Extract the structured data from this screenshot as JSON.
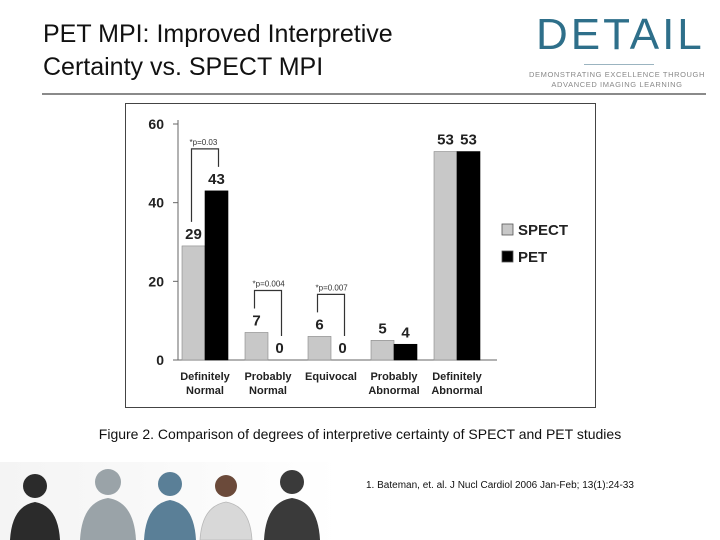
{
  "slide": {
    "title_line1": "PET MPI: Improved Interpretive",
    "title_line2": "Certainty vs. SPECT MPI",
    "caption": "Figure 2. Comparison of degrees of interpretive certainty of SPECT and PET studies",
    "citation": "1. Bateman, et. al. J Nucl Cardiol 2006 Jan-Feb; 13(1):24-33"
  },
  "logo": {
    "wordmark": "DETAIL",
    "tagline_line1": "DEMONSTRATING EXCELLENCE THROUGH",
    "tagline_line2": "ADVANCED IMAGING LEARNING",
    "color": "#2e6f8a"
  },
  "chart_data": {
    "type": "bar",
    "categories": [
      [
        "Definitely",
        "Normal"
      ],
      [
        "Probably",
        "Normal"
      ],
      [
        "Equivocal"
      ],
      [
        "Probably",
        "Abnormal"
      ],
      [
        "Definitely",
        "Abnormal"
      ]
    ],
    "series": [
      {
        "name": "SPECT",
        "values": [
          29,
          7,
          6,
          5,
          53
        ],
        "color": "#c8c8c8"
      },
      {
        "name": "PET",
        "values": [
          43,
          0,
          0,
          4,
          53
        ],
        "color": "#000000"
      }
    ],
    "yticks": [
      0,
      20,
      40,
      60
    ],
    "ylim": [
      0,
      60
    ],
    "legend_position": "right",
    "annotations": [
      {
        "category_index": 0,
        "text": "*p=0.03"
      },
      {
        "category_index": 1,
        "text": "*p=0.004"
      },
      {
        "category_index": 2,
        "text": "*p=0.007"
      }
    ]
  }
}
